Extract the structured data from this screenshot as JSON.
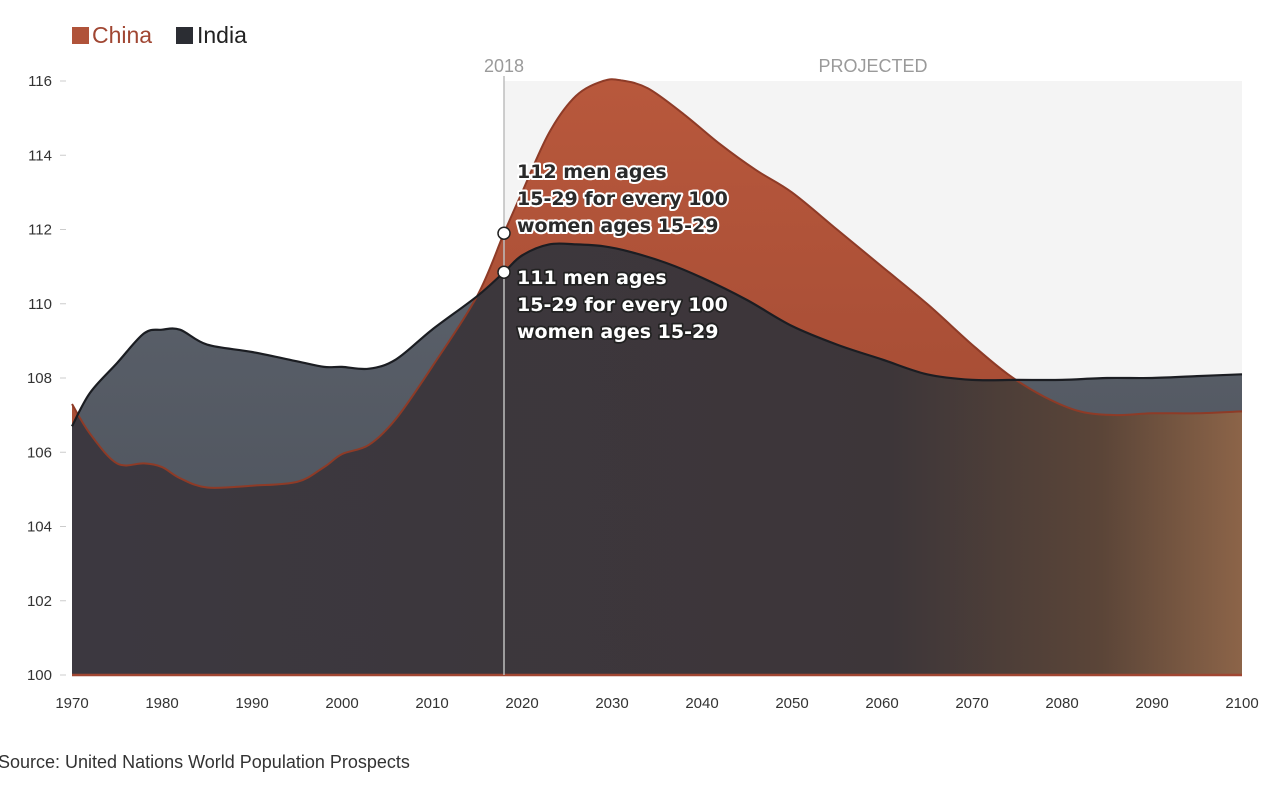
{
  "chart_data": {
    "type": "area",
    "title": "",
    "xlabel": "",
    "ylabel": "",
    "xlim": [
      1970,
      2100
    ],
    "ylim": [
      100,
      116
    ],
    "x_ticks": [
      "1970",
      "1980",
      "1990",
      "2000",
      "2010",
      "2020",
      "2030",
      "2040",
      "2050",
      "2060",
      "2070",
      "2080",
      "2090",
      "2100"
    ],
    "y_ticks": [
      "100",
      "102",
      "104",
      "106",
      "108",
      "110",
      "112",
      "114",
      "116"
    ],
    "legend": [
      {
        "name": "China",
        "color": "#b0533a"
      },
      {
        "name": "India",
        "color": "#2b2d33"
      }
    ],
    "series": [
      {
        "name": "China",
        "color": "#b0533a",
        "x": [
          1970,
          1972,
          1975,
          1978,
          1980,
          1982,
          1985,
          1990,
          1995,
          1998,
          2000,
          2003,
          2006,
          2010,
          2015,
          2018,
          2020,
          2023,
          2026,
          2029,
          2031,
          2034,
          2038,
          2042,
          2046,
          2050,
          2055,
          2060,
          2065,
          2070,
          2074,
          2078,
          2082,
          2086,
          2090,
          2095,
          2100
        ],
        "values": [
          107.3,
          106.5,
          105.7,
          105.7,
          105.6,
          105.3,
          105.05,
          105.1,
          105.2,
          105.6,
          105.95,
          106.2,
          106.9,
          108.3,
          110.2,
          111.9,
          113.0,
          114.6,
          115.6,
          116.0,
          116.02,
          115.8,
          115.1,
          114.3,
          113.6,
          113.0,
          112.0,
          111.0,
          110.0,
          108.9,
          108.1,
          107.5,
          107.1,
          107.0,
          107.05,
          107.05,
          107.1
        ]
      },
      {
        "name": "India",
        "color": "#2b2d33",
        "x": [
          1970,
          1972,
          1975,
          1978,
          1980,
          1982,
          1985,
          1990,
          1995,
          1998,
          2000,
          2003,
          2006,
          2010,
          2015,
          2018,
          2020,
          2023,
          2026,
          2029,
          2032,
          2036,
          2040,
          2045,
          2050,
          2055,
          2060,
          2065,
          2070,
          2075,
          2080,
          2085,
          2090,
          2095,
          2100
        ],
        "values": [
          106.7,
          107.6,
          108.4,
          109.2,
          109.3,
          109.3,
          108.9,
          108.7,
          108.45,
          108.3,
          108.3,
          108.25,
          108.5,
          109.3,
          110.2,
          110.85,
          111.3,
          111.6,
          111.6,
          111.55,
          111.4,
          111.1,
          110.7,
          110.1,
          109.4,
          108.9,
          108.5,
          108.1,
          107.95,
          107.95,
          107.95,
          108.0,
          108.0,
          108.05,
          108.1
        ]
      }
    ],
    "marker": {
      "x": 2018,
      "label": "2018"
    },
    "projected_region": {
      "from": 2018,
      "to": 2100,
      "label": "PROJECTED"
    },
    "annotations": [
      {
        "series": "China",
        "x": 2018,
        "y": 111.9,
        "lines": [
          "112 men ages",
          "15-29 for every 100",
          "women ages 15-29"
        ]
      },
      {
        "series": "India",
        "x": 2018,
        "y": 110.85,
        "lines": [
          "111 men ages",
          "15-29 for every 100",
          "women ages 15-29"
        ]
      }
    ]
  },
  "source": "Source: United Nations World Population Prospects"
}
